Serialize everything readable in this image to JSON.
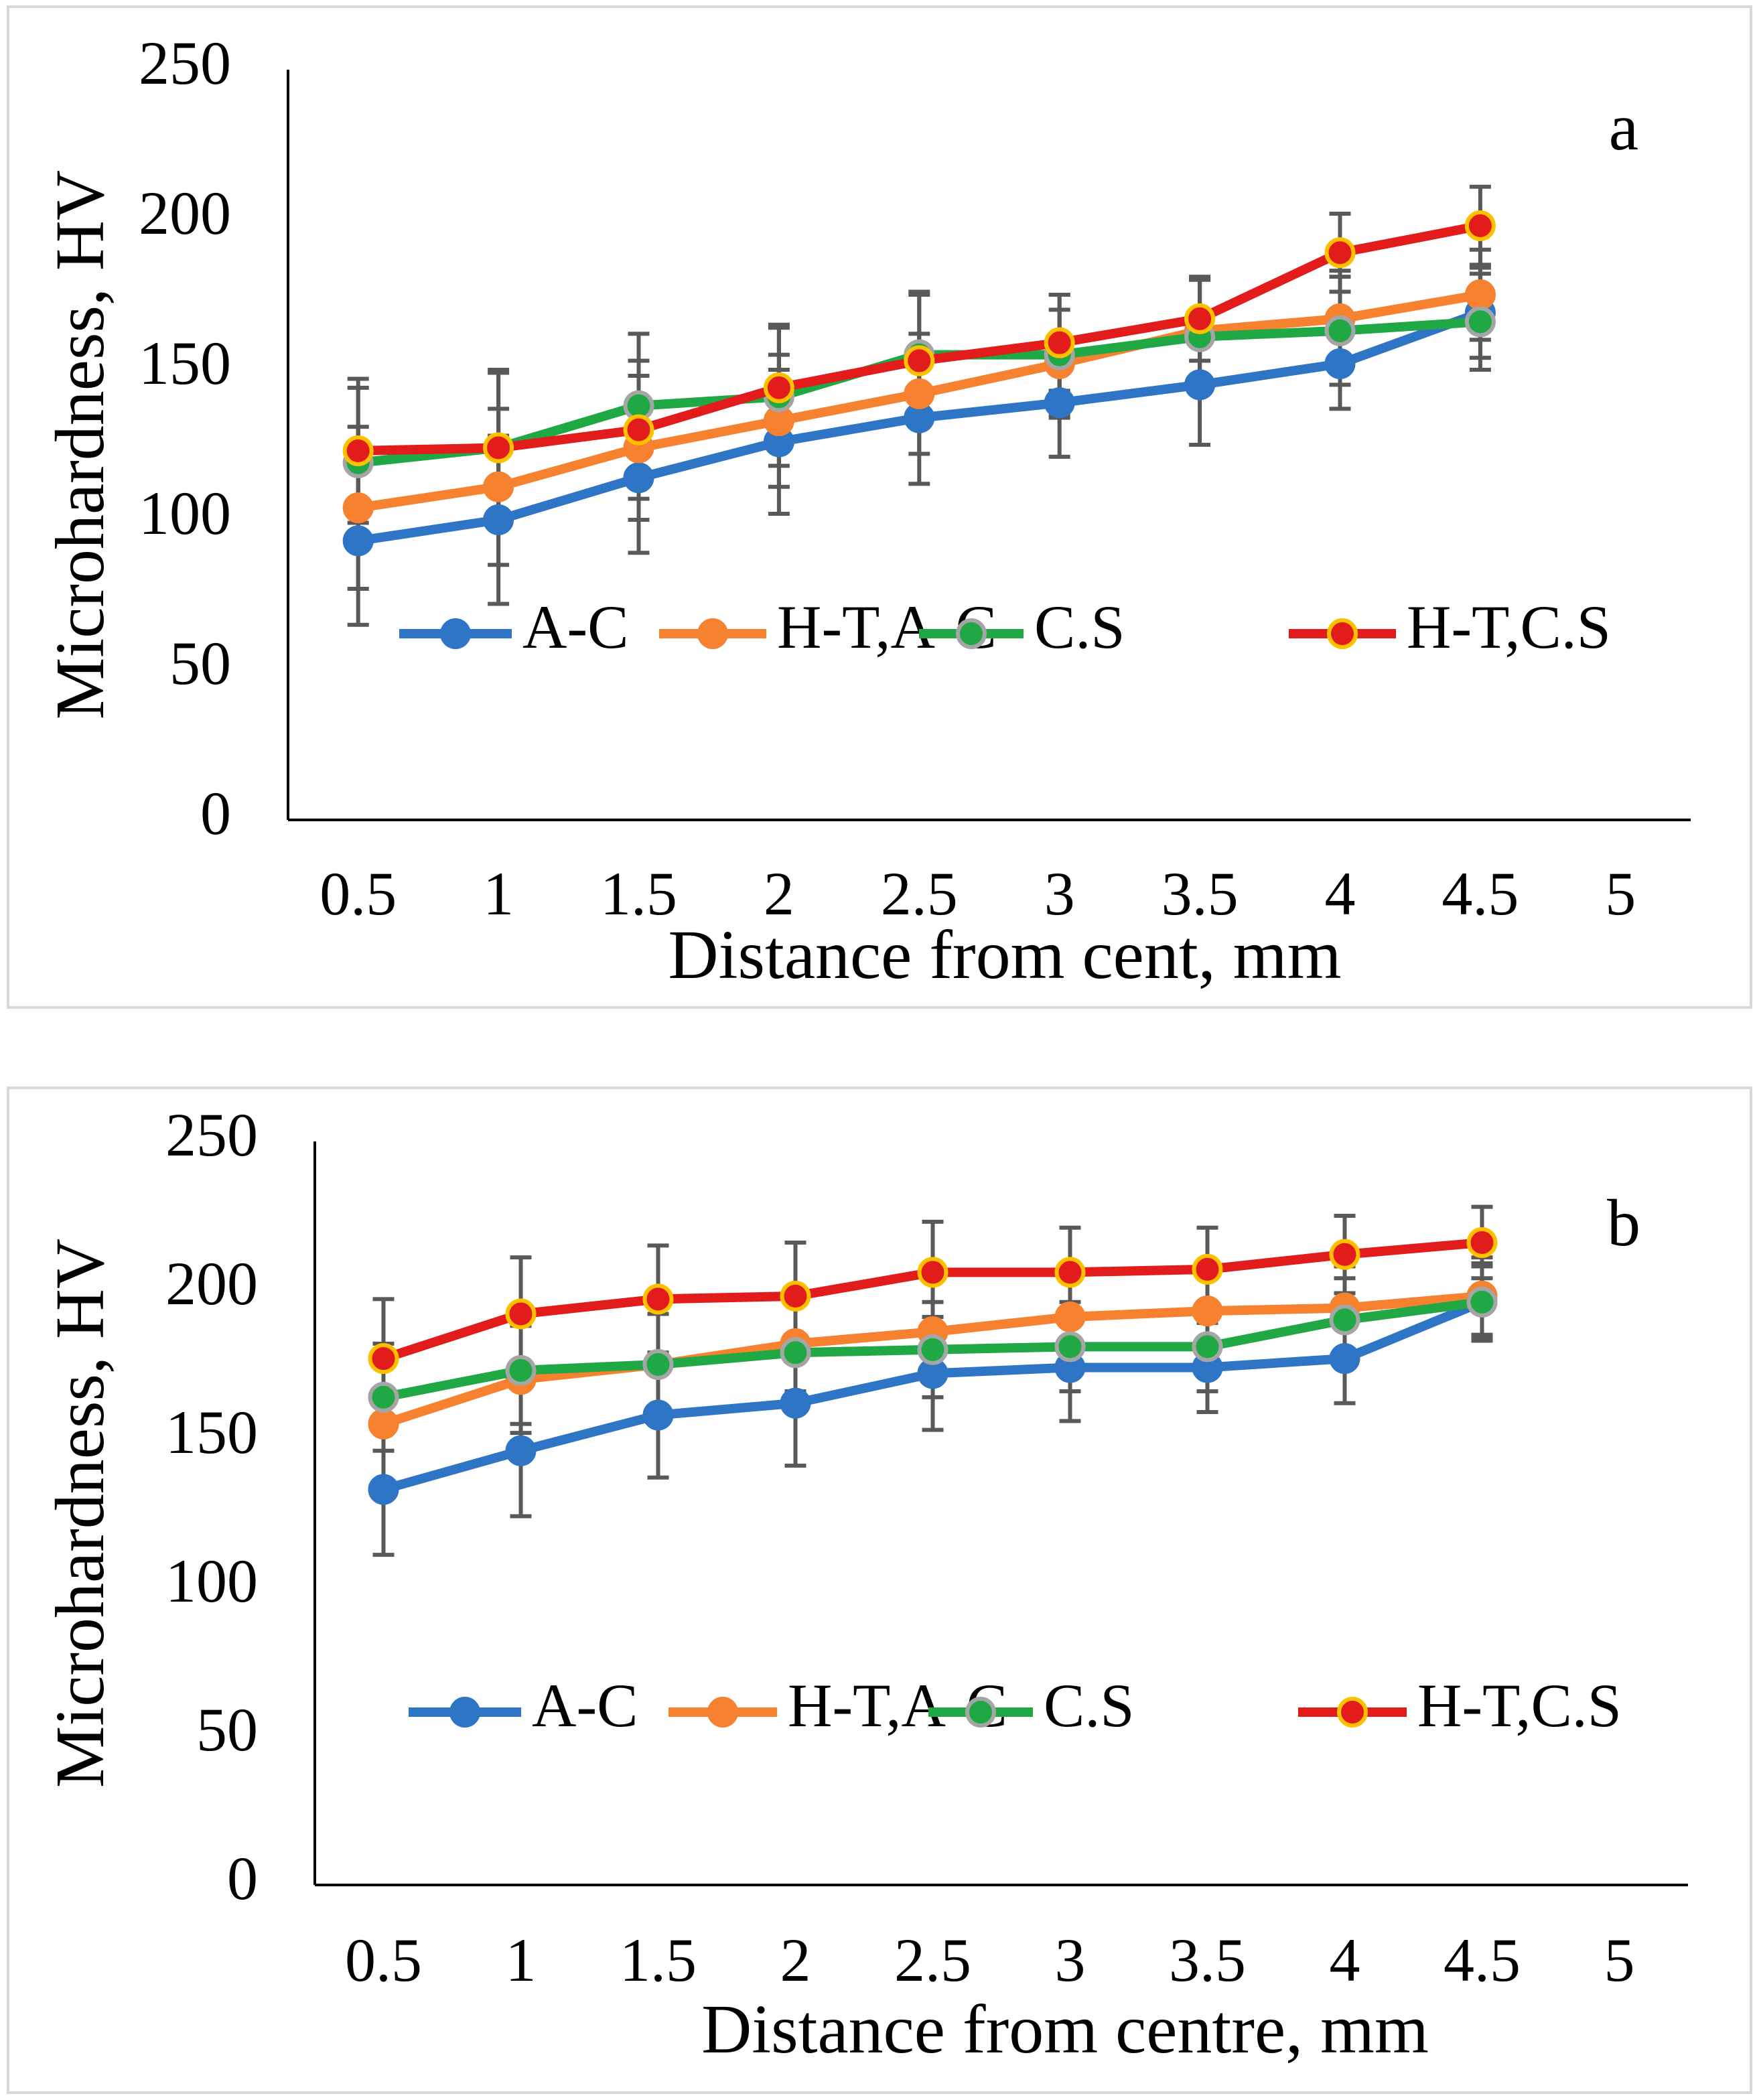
{
  "chart_data": [
    {
      "type": "line",
      "panel": "a",
      "x_label": "Distance from cent, mm",
      "y_label": "Microhardness, HV",
      "categories": [
        "0.5",
        "1",
        "1.5",
        "2",
        "2.5",
        "3",
        "3.5",
        "4",
        "4.5",
        "5"
      ],
      "ylim": [
        0,
        250
      ],
      "yticks": [
        0,
        50,
        100,
        150,
        200,
        250
      ],
      "grid": false,
      "series": [
        {
          "name": "A-C",
          "color": "#2e75c6",
          "marker_edge": "#2e75c6",
          "values": [
            93,
            100,
            114,
            126,
            134,
            139,
            145,
            152,
            169,
            null
          ],
          "errors": [
            28,
            28,
            25,
            24,
            22,
            18,
            20,
            15,
            15,
            null
          ]
        },
        {
          "name": "H-T,A-C",
          "color": "#f6812f",
          "marker_edge": "#f6812f",
          "values": [
            104,
            111,
            124,
            133,
            142,
            152,
            163,
            167,
            175,
            null
          ],
          "errors": [
            27,
            26,
            24,
            22,
            20,
            18,
            17,
            16,
            15,
            null
          ]
        },
        {
          "name": "C.S",
          "color": "#1fa843",
          "marker_edge": "#a5a5a5",
          "values": [
            119,
            124,
            138,
            141,
            155,
            155,
            161,
            163,
            166,
            null
          ],
          "errors": [
            25,
            25,
            24,
            23,
            21,
            20,
            19,
            18,
            16,
            null
          ]
        },
        {
          "name": "H-T,C.S",
          "color": "#e21b1b",
          "marker_edge": "#ffc000",
          "values": [
            123,
            124,
            130,
            144,
            153,
            159,
            167,
            189,
            198,
            null
          ],
          "errors": [
            24,
            26,
            23,
            21,
            22,
            16,
            14,
            13,
            13,
            null
          ]
        }
      ]
    },
    {
      "type": "line",
      "panel": "b",
      "x_label": "Distance from centre, mm",
      "y_label": "Microhardness, HV",
      "categories": [
        "0.5",
        "1",
        "1.5",
        "2",
        "2.5",
        "3",
        "3.5",
        "4",
        "4.5",
        "5"
      ],
      "ylim": [
        0,
        250
      ],
      "yticks": [
        0,
        50,
        100,
        150,
        200,
        250
      ],
      "grid": false,
      "series": [
        {
          "name": "A-C",
          "color": "#2e75c6",
          "marker_edge": "#2e75c6",
          "values": [
            133,
            146,
            158,
            162,
            172,
            174,
            174,
            177,
            196,
            null
          ],
          "errors": [
            22,
            22,
            21,
            21,
            19,
            18,
            15,
            15,
            12,
            null
          ]
        },
        {
          "name": "H-T,A-C",
          "color": "#f6812f",
          "marker_edge": "#f6812f",
          "values": [
            155,
            170,
            175,
            182,
            186,
            191,
            193,
            194,
            198,
            null
          ],
          "errors": [
            20,
            18,
            17,
            16,
            17,
            16,
            15,
            14,
            13,
            null
          ]
        },
        {
          "name": "C.S",
          "color": "#1fa843",
          "marker_edge": "#a5a5a5",
          "values": [
            164,
            173,
            175,
            179,
            180,
            181,
            181,
            190,
            196,
            null
          ],
          "errors": [
            18,
            18,
            17,
            16,
            16,
            15,
            15,
            14,
            13,
            null
          ]
        },
        {
          "name": "H-T,C.S",
          "color": "#e21b1b",
          "marker_edge": "#ffc000",
          "values": [
            177,
            192,
            197,
            198,
            206,
            206,
            207,
            212,
            216,
            null
          ],
          "errors": [
            20,
            19,
            18,
            18,
            17,
            15,
            14,
            13,
            12,
            null
          ]
        }
      ]
    }
  ]
}
